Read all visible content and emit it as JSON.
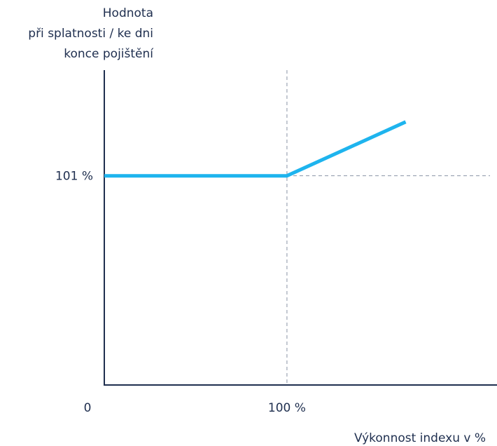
{
  "chart_data": {
    "type": "line",
    "ylabel_lines": [
      "Hodnota",
      "při splatnosti / ke dni",
      "konce pojištění"
    ],
    "xlabel": "Výkonnost indexu v %",
    "x_origin_label": "0",
    "x_ticks": [
      {
        "value": 100,
        "label": "100 %"
      }
    ],
    "y_ticks": [
      {
        "value": 101,
        "label": "101 %"
      }
    ],
    "xlim": [
      0,
      215
    ],
    "ylim": [
      0,
      152
    ],
    "series": [
      {
        "x": [
          0,
          100,
          165
        ],
        "y": [
          101,
          101,
          127
        ]
      }
    ],
    "reference_lines": {
      "vertical_at_x": 100,
      "horizontal_at_y": 101
    },
    "colors": {
      "line": "#1eb4ee",
      "axis": "#1f2f4f",
      "guide": "#8a93a6",
      "text": "#1f2f4f"
    },
    "grid": false,
    "legend": "none"
  }
}
